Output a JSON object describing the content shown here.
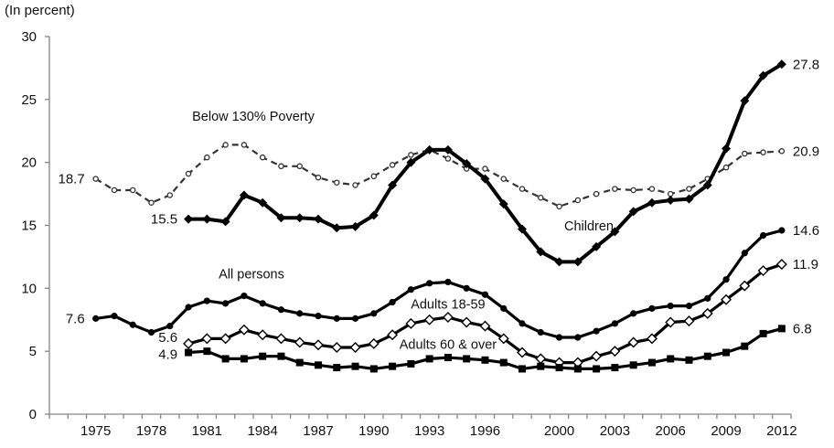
{
  "chart_data": {
    "type": "line",
    "title": "",
    "ylabel": "(In percent)",
    "xlabel": "",
    "ylim": [
      0,
      30
    ],
    "yticks": [
      0,
      5,
      10,
      15,
      20,
      25,
      30
    ],
    "grid": false,
    "x_categories_range": [
      1973,
      2012
    ],
    "xtick_labels": [
      "1975",
      "1978",
      "1981",
      "1984",
      "1987",
      "1990",
      "1993",
      "1996",
      "2000",
      "2003",
      "2006",
      "2009",
      "2012"
    ],
    "xtick_label_years": [
      1975,
      1978,
      1981,
      1984,
      1987,
      1990,
      1993,
      1996,
      2000,
      2003,
      2006,
      2009,
      2012
    ],
    "series": [
      {
        "name": "Below 130% Poverty",
        "style": "dashed",
        "marker": "open-circle",
        "color": "#333333",
        "start_year": 1975,
        "values": [
          18.7,
          17.8,
          17.8,
          16.8,
          17.4,
          19.1,
          20.4,
          21.4,
          21.4,
          20.4,
          19.7,
          19.7,
          18.8,
          18.4,
          18.2,
          18.9,
          19.8,
          20.6,
          21.0,
          20.3,
          19.5,
          19.5,
          18.7,
          17.9,
          17.2,
          16.5,
          17.0,
          17.5,
          17.9,
          17.8,
          17.9,
          17.5,
          17.9,
          18.7,
          19.6,
          20.7,
          20.8,
          20.9
        ],
        "start_label": "18.7",
        "end_label": "20.9"
      },
      {
        "name": "Children",
        "style": "solid-thick",
        "marker": "filled-diamond",
        "color": "#000000",
        "start_year": 1980,
        "values": [
          15.5,
          15.5,
          15.3,
          17.4,
          16.8,
          15.6,
          15.6,
          15.5,
          14.8,
          14.9,
          15.8,
          18.2,
          20.0,
          21.0,
          21.0,
          19.9,
          18.7,
          16.7,
          14.7,
          12.9,
          12.1,
          12.1,
          13.3,
          14.5,
          16.1,
          16.8,
          17.0,
          17.1,
          18.2,
          21.1,
          24.9,
          26.9,
          27.8
        ],
        "start_label": "15.5",
        "end_label": "27.8"
      },
      {
        "name": "All persons",
        "style": "solid",
        "marker": "filled-circle",
        "color": "#000000",
        "start_year": 1975,
        "values": [
          7.6,
          7.8,
          7.1,
          6.5,
          7.0,
          8.5,
          9.0,
          8.8,
          9.4,
          8.8,
          8.3,
          8.0,
          7.8,
          7.6,
          7.6,
          8.0,
          8.9,
          9.9,
          10.4,
          10.5,
          10.0,
          9.5,
          8.4,
          7.2,
          6.5,
          6.1,
          6.1,
          6.6,
          7.2,
          8.0,
          8.4,
          8.6,
          8.6,
          9.2,
          10.7,
          12.8,
          14.2,
          14.6
        ],
        "start_label": "7.6",
        "end_label": "14.6"
      },
      {
        "name": "Adults 18-59",
        "style": "solid",
        "marker": "open-diamond",
        "color": "#000000",
        "start_year": 1980,
        "values": [
          5.6,
          6.0,
          6.0,
          6.7,
          6.3,
          6.0,
          5.7,
          5.5,
          5.3,
          5.3,
          5.6,
          6.3,
          7.2,
          7.5,
          7.7,
          7.3,
          7.0,
          6.0,
          4.9,
          4.4,
          4.1,
          4.1,
          4.6,
          5.0,
          5.7,
          6.0,
          7.3,
          7.4,
          8.0,
          9.1,
          10.2,
          11.4,
          11.9
        ],
        "start_label": "5.6",
        "end_label": "11.9"
      },
      {
        "name": "Adults 60 & over",
        "style": "solid",
        "marker": "filled-square",
        "color": "#000000",
        "start_year": 1980,
        "values": [
          4.9,
          5.0,
          4.4,
          4.4,
          4.6,
          4.6,
          4.1,
          3.9,
          3.7,
          3.8,
          3.6,
          3.8,
          4.0,
          4.4,
          4.5,
          4.4,
          4.3,
          4.1,
          3.6,
          3.8,
          3.7,
          3.6,
          3.6,
          3.7,
          3.9,
          4.1,
          4.4,
          4.3,
          4.6,
          4.9,
          5.4,
          6.4,
          6.8
        ],
        "start_label": "4.9",
        "end_label": "6.8"
      }
    ],
    "annotations": [
      {
        "text": "Below 130% Poverty",
        "series": "Below 130% Poverty",
        "anchor_year": 1983.5,
        "anchor_value": 23.3
      },
      {
        "text": "Children",
        "series": "Children",
        "anchor_year": 2001.6,
        "anchor_value": 14.6
      },
      {
        "text": "All persons",
        "series": "All persons",
        "anchor_year": 1983.4,
        "anchor_value": 10.8
      },
      {
        "text": "Adults 18-59",
        "series": "Adults 18-59",
        "anchor_year": 1994.0,
        "anchor_value": 8.4
      },
      {
        "text": "Adults 60 & over",
        "series": "Adults 60 & over",
        "anchor_year": 1994.0,
        "anchor_value": 5.2
      }
    ],
    "legend": "none (inline labels)"
  }
}
